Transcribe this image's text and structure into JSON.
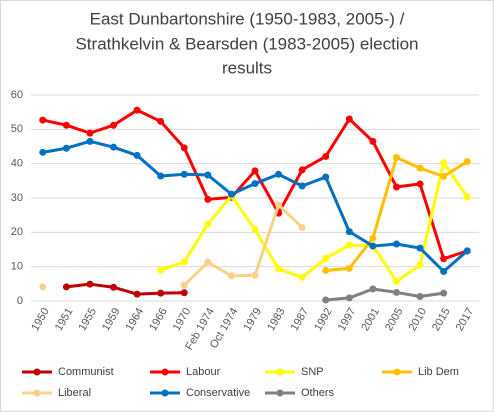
{
  "chart_data": {
    "type": "line",
    "title": [
      "East Dunbartonshire (1950-1983, 2005-) /",
      "Strathkelvin & Bearsden (1983-2005) election",
      "results"
    ],
    "categories": [
      "1950",
      "1951",
      "1955",
      "1959",
      "1964",
      "1966",
      "1970",
      "Feb 1974",
      "Oct 1974",
      "1979",
      "1983",
      "1987",
      "1992",
      "1997",
      "2001",
      "2005",
      "2010",
      "2015",
      "2017"
    ],
    "ylim": [
      0,
      60
    ],
    "yticks": [
      0,
      10,
      20,
      30,
      40,
      50,
      60
    ],
    "grid": true,
    "series": [
      {
        "name": "Communist",
        "color": "#c00000",
        "values": [
          null,
          4.1,
          4.9,
          4.0,
          2.0,
          2.3,
          2.4,
          null,
          null,
          null,
          null,
          null,
          null,
          null,
          null,
          null,
          null,
          null,
          null
        ]
      },
      {
        "name": "Labour",
        "color": "#ff0000",
        "values": [
          52.7,
          51.2,
          48.9,
          51.2,
          55.6,
          52.3,
          44.6,
          29.6,
          30.2,
          37.9,
          25.6,
          38.2,
          42.1,
          53.0,
          46.5,
          33.2,
          34.1,
          12.3,
          14.6
        ]
      },
      {
        "name": "SNP",
        "color": "#ffff00",
        "values": [
          null,
          null,
          null,
          null,
          null,
          9.0,
          11.4,
          22.4,
          30.6,
          20.8,
          9.3,
          6.9,
          12.4,
          16.3,
          16.1,
          5.7,
          10.5,
          40.3,
          30.3
        ]
      },
      {
        "name": "Lib Dem",
        "color": "#ffc000",
        "values": [
          null,
          null,
          null,
          null,
          null,
          null,
          null,
          null,
          null,
          null,
          null,
          null,
          8.9,
          9.5,
          18.3,
          41.8,
          38.7,
          36.3,
          40.6
        ]
      },
      {
        "name": "Liberal",
        "color": "#f9d18a",
        "values": [
          4.1,
          null,
          null,
          null,
          null,
          null,
          4.6,
          11.3,
          7.3,
          7.5,
          28.0,
          21.4,
          null,
          null,
          null,
          null,
          null,
          null,
          null
        ]
      },
      {
        "name": "Conservative",
        "color": "#0070c0",
        "values": [
          43.3,
          44.5,
          46.5,
          44.8,
          42.4,
          36.4,
          36.9,
          36.7,
          31.1,
          34.2,
          36.9,
          33.5,
          36.1,
          20.2,
          16.0,
          16.6,
          15.4,
          8.6,
          14.6
        ]
      },
      {
        "name": "Others",
        "color": "#808080",
        "values": [
          null,
          null,
          null,
          null,
          null,
          null,
          null,
          null,
          null,
          null,
          null,
          null,
          0.3,
          0.9,
          3.5,
          2.5,
          1.3,
          2.3,
          null
        ]
      }
    ]
  }
}
